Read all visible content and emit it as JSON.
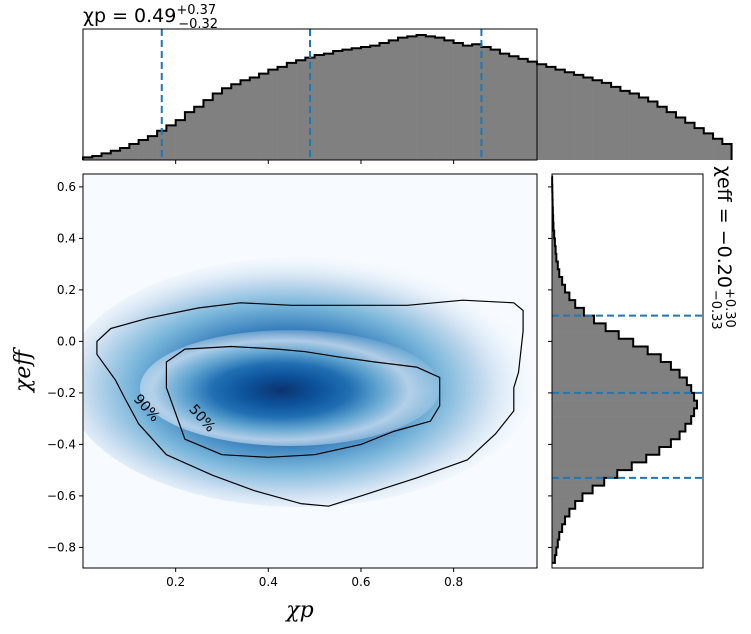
{
  "chart_data": [
    {
      "type": "heatmap",
      "panel": "joint",
      "xlabel": "χp",
      "ylabel": "χeff",
      "xlim": [
        0.0,
        0.98
      ],
      "ylim": [
        -0.88,
        0.65
      ],
      "xticks": [
        "0.2",
        "0.4",
        "0.6",
        "0.8"
      ],
      "yticks": [
        "−0.8",
        "−0.6",
        "−0.4",
        "−0.2",
        "0.0",
        "0.2",
        "0.4",
        "0.6"
      ],
      "density_peak": {
        "x": 0.44,
        "y": -0.2
      },
      "contours": [
        {
          "label": "50%",
          "points": [
            [
              0.18,
              -0.08
            ],
            [
              0.22,
              -0.03
            ],
            [
              0.32,
              -0.02
            ],
            [
              0.42,
              -0.03
            ],
            [
              0.48,
              -0.04
            ],
            [
              0.55,
              -0.06
            ],
            [
              0.63,
              -0.08
            ],
            [
              0.72,
              -0.1
            ],
            [
              0.77,
              -0.14
            ],
            [
              0.77,
              -0.25
            ],
            [
              0.75,
              -0.31
            ],
            [
              0.67,
              -0.35
            ],
            [
              0.6,
              -0.4
            ],
            [
              0.5,
              -0.44
            ],
            [
              0.4,
              -0.45
            ],
            [
              0.3,
              -0.44
            ],
            [
              0.22,
              -0.38
            ],
            [
              0.2,
              -0.28
            ],
            [
              0.18,
              -0.18
            ]
          ]
        },
        {
          "label": "90%",
          "points": [
            [
              0.03,
              0.0
            ],
            [
              0.06,
              0.05
            ],
            [
              0.14,
              0.09
            ],
            [
              0.25,
              0.13
            ],
            [
              0.34,
              0.15
            ],
            [
              0.45,
              0.14
            ],
            [
              0.56,
              0.14
            ],
            [
              0.7,
              0.14
            ],
            [
              0.82,
              0.16
            ],
            [
              0.93,
              0.15
            ],
            [
              0.95,
              0.12
            ],
            [
              0.95,
              0.04
            ],
            [
              0.94,
              -0.12
            ],
            [
              0.93,
              -0.18
            ],
            [
              0.93,
              -0.27
            ],
            [
              0.89,
              -0.36
            ],
            [
              0.83,
              -0.46
            ],
            [
              0.72,
              -0.53
            ],
            [
              0.6,
              -0.6
            ],
            [
              0.53,
              -0.64
            ],
            [
              0.47,
              -0.63
            ],
            [
              0.37,
              -0.58
            ],
            [
              0.28,
              -0.52
            ],
            [
              0.18,
              -0.44
            ],
            [
              0.12,
              -0.32
            ],
            [
              0.09,
              -0.22
            ],
            [
              0.07,
              -0.15
            ],
            [
              0.03,
              -0.05
            ]
          ]
        }
      ]
    },
    {
      "type": "bar",
      "panel": "top-marginal",
      "title_main": "χp = 0.49",
      "title_sup": "+0.37",
      "title_sub": "−0.32",
      "xlim": [
        0.0,
        0.98
      ],
      "bin_edges_start": 0.0,
      "bin_width": 0.02,
      "values": [
        0.02,
        0.03,
        0.05,
        0.07,
        0.09,
        0.12,
        0.15,
        0.18,
        0.22,
        0.26,
        0.3,
        0.36,
        0.4,
        0.45,
        0.5,
        0.54,
        0.57,
        0.6,
        0.62,
        0.65,
        0.68,
        0.7,
        0.73,
        0.75,
        0.77,
        0.79,
        0.8,
        0.82,
        0.83,
        0.84,
        0.85,
        0.86,
        0.88,
        0.9,
        0.92,
        0.93,
        0.94,
        0.93,
        0.92,
        0.9,
        0.88,
        0.86,
        0.87,
        0.85,
        0.83,
        0.8,
        0.78,
        0.76,
        0.74,
        0.72,
        0.7,
        0.68,
        0.66,
        0.64,
        0.62,
        0.6,
        0.58,
        0.55,
        0.52,
        0.5,
        0.47,
        0.44,
        0.4,
        0.36,
        0.32,
        0.28,
        0.24,
        0.2,
        0.16,
        0.12
      ],
      "quantile_lines": [
        0.17,
        0.49,
        0.86
      ]
    },
    {
      "type": "bar",
      "panel": "right-marginal",
      "orientation": "horizontal",
      "title_main": "χeff = −0.20",
      "title_sup": "+0.30",
      "title_sub": "−0.33",
      "ylim": [
        -0.88,
        0.65
      ],
      "bin_edges_start": -0.86,
      "bin_width": 0.03,
      "values": [
        0.02,
        0.03,
        0.04,
        0.05,
        0.07,
        0.09,
        0.12,
        0.16,
        0.21,
        0.28,
        0.36,
        0.45,
        0.55,
        0.65,
        0.74,
        0.82,
        0.88,
        0.92,
        0.96,
        0.98,
        1.0,
        0.98,
        0.96,
        0.93,
        0.88,
        0.82,
        0.75,
        0.66,
        0.56,
        0.46,
        0.37,
        0.29,
        0.22,
        0.16,
        0.12,
        0.09,
        0.07,
        0.05,
        0.04,
        0.03,
        0.025,
        0.02,
        0.015,
        0.01,
        0.008,
        0.006,
        0.004,
        0.003,
        0.002,
        0.001
      ],
      "quantile_lines": [
        -0.53,
        -0.2,
        0.1
      ]
    }
  ]
}
